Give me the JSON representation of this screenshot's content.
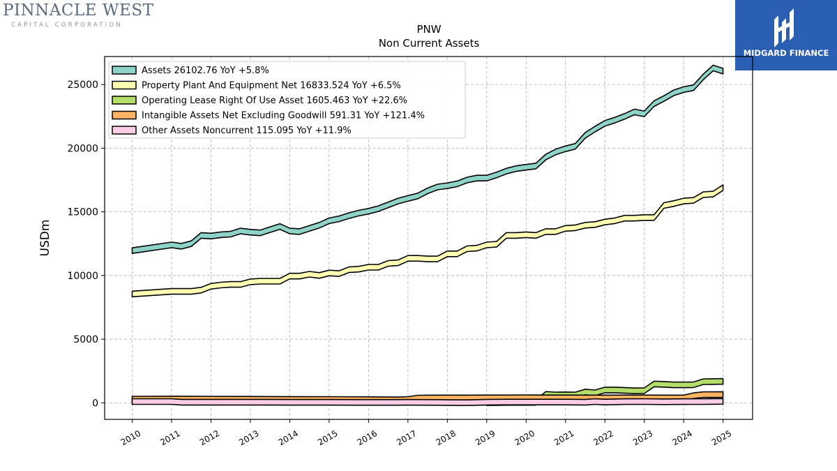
{
  "logo": {
    "name": "PINNACLE WEST",
    "tagline": "CAPITAL CORPORATION"
  },
  "brand": {
    "name": "MIDGARD FINANCE",
    "color": "#2b5fb4"
  },
  "chart_data": {
    "type": "area",
    "title": "PNW",
    "subtitle": "Non Current  Assets",
    "ylabel": "USDm",
    "xlabel": "",
    "ylim": [
      -1300,
      27200
    ],
    "xlim": [
      2009.3,
      2025.75
    ],
    "yticks": [
      0,
      5000,
      10000,
      15000,
      20000,
      25000
    ],
    "xticks": [
      2010,
      2011,
      2012,
      2013,
      2014,
      2015,
      2016,
      2017,
      2018,
      2019,
      2020,
      2021,
      2022,
      2023,
      2024,
      2025
    ],
    "grid": true,
    "legend_position": "top-left",
    "series": [
      {
        "name": "Assets",
        "legend": "Assets  26102.76 YoY +5.8%",
        "color": "#8dd3c7",
        "x": [
          2010,
          2011,
          2011.25,
          2011.5,
          2011.75,
          2012,
          2012.25,
          2012.5,
          2012.75,
          2013,
          2013.25,
          2013.5,
          2013.75,
          2014,
          2014.25,
          2014.5,
          2014.75,
          2015,
          2015.25,
          2015.5,
          2015.75,
          2016,
          2016.25,
          2016.5,
          2016.75,
          2017,
          2017.25,
          2017.5,
          2017.75,
          2018,
          2018.25,
          2018.5,
          2018.75,
          2019,
          2019.25,
          2019.5,
          2019.75,
          2020,
          2020.25,
          2020.5,
          2020.75,
          2021,
          2021.25,
          2021.5,
          2021.75,
          2022,
          2022.25,
          2022.5,
          2022.75,
          2023,
          2023.25,
          2023.5,
          2023.75,
          2024,
          2024.25,
          2024.5,
          2024.75,
          2025
        ],
        "values": [
          11950,
          12400,
          12300,
          12500,
          13150,
          13100,
          13200,
          13250,
          13500,
          13400,
          13350,
          13600,
          13850,
          13500,
          13450,
          13700,
          13950,
          14300,
          14450,
          14700,
          14900,
          15050,
          15250,
          15550,
          15850,
          16050,
          16250,
          16650,
          16950,
          17050,
          17200,
          17500,
          17650,
          17650,
          17900,
          18200,
          18400,
          18500,
          18600,
          19300,
          19700,
          19950,
          20150,
          21000,
          21500,
          21950,
          22200,
          22500,
          22850,
          22700,
          23500,
          23900,
          24350,
          24600,
          24750,
          25600,
          26300,
          26050
        ]
      },
      {
        "name": "Property Plant And Equipment Net",
        "legend": "Property Plant And Equipment Net  16833.524 YoY +6.5%",
        "color": "#ffffb3",
        "x": [
          2010,
          2011,
          2011.5,
          2011.75,
          2012,
          2012.25,
          2012.5,
          2012.75,
          2013,
          2013.25,
          2013.5,
          2013.75,
          2014,
          2014.25,
          2014.5,
          2014.75,
          2015,
          2015.25,
          2015.5,
          2015.75,
          2016,
          2016.25,
          2016.5,
          2016.75,
          2017,
          2017.25,
          2017.5,
          2017.75,
          2018,
          2018.25,
          2018.5,
          2018.75,
          2019,
          2019.25,
          2019.5,
          2019.75,
          2020,
          2020.25,
          2020.5,
          2020.75,
          2021,
          2021.25,
          2021.5,
          2021.75,
          2022,
          2022.25,
          2022.5,
          2022.75,
          2023,
          2023.25,
          2023.5,
          2023.75,
          2024,
          2024.25,
          2024.5,
          2024.75,
          2025
        ],
        "values": [
          8550,
          8750,
          8750,
          8850,
          9150,
          9250,
          9300,
          9300,
          9500,
          9550,
          9550,
          9550,
          9950,
          9950,
          10100,
          10000,
          10200,
          10150,
          10450,
          10500,
          10650,
          10650,
          10950,
          11000,
          11350,
          11350,
          11300,
          11300,
          11700,
          11700,
          12100,
          12150,
          12400,
          12450,
          13150,
          13150,
          13200,
          13150,
          13450,
          13450,
          13700,
          13750,
          13950,
          14000,
          14200,
          14300,
          14500,
          14500,
          14550,
          14550,
          15500,
          15650,
          15850,
          15900,
          16350,
          16400,
          16900
        ]
      },
      {
        "name": "Operating Lease Right Of Use Asset",
        "legend": "Operating Lease Right Of Use Asset  1605.463 YoY +22.6%",
        "color": "#b3de69",
        "x": [
          2019,
          2019.25,
          2019.5,
          2019.75,
          2020,
          2020.25,
          2020.5,
          2020.75,
          2021,
          2021.25,
          2021.5,
          2021.75,
          2022,
          2022.25,
          2022.5,
          2022.75,
          2023,
          2023.25,
          2023.5,
          2023.75,
          2024,
          2024.25,
          2024.5,
          2024.75,
          2025
        ],
        "values": [
          10,
          20,
          30,
          30,
          30,
          40,
          660,
          620,
          630,
          620,
          850,
          780,
          1010,
          1010,
          980,
          940,
          950,
          1480,
          1450,
          1410,
          1410,
          1420,
          1660,
          1670,
          1680
        ]
      },
      {
        "name": "Intangible Assets Net Excluding Goodwill",
        "legend": "Intangible Assets Net Excluding Goodwill  591.31 YoY +121.4%",
        "color": "#fdb462",
        "x": [
          2010,
          2011,
          2012,
          2013,
          2014,
          2015,
          2016,
          2016.75,
          2017,
          2017.25,
          2017.5,
          2018,
          2018.5,
          2019,
          2019.5,
          2020,
          2020.5,
          2021,
          2021.5,
          2022,
          2022.5,
          2023,
          2023.5,
          2024,
          2024.25,
          2024.5,
          2025
        ],
        "values": [
          290,
          300,
          290,
          280,
          270,
          260,
          250,
          230,
          260,
          370,
          380,
          380,
          380,
          390,
          390,
          400,
          390,
          390,
          380,
          380,
          390,
          390,
          380,
          380,
          560,
          640,
          650
        ]
      },
      {
        "name": "Other Assets Noncurrent",
        "legend": "Other Assets Noncurrent  115.095 YoY +11.9%",
        "color": "#fccde5",
        "x": [
          2010,
          2011,
          2011.25,
          2012,
          2013,
          2014,
          2015,
          2016,
          2016.75,
          2017,
          2017.5,
          2018,
          2018.5,
          2019,
          2019.5,
          2020,
          2021,
          2021.5,
          2021.75,
          2022,
          2022.5,
          2023,
          2023.5,
          2024,
          2024.5,
          2025
        ],
        "values": [
          100,
          100,
          50,
          50,
          50,
          40,
          40,
          30,
          30,
          40,
          30,
          20,
          10,
          50,
          60,
          60,
          60,
          50,
          100,
          60,
          90,
          100,
          80,
          90,
          100,
          115
        ]
      }
    ]
  }
}
